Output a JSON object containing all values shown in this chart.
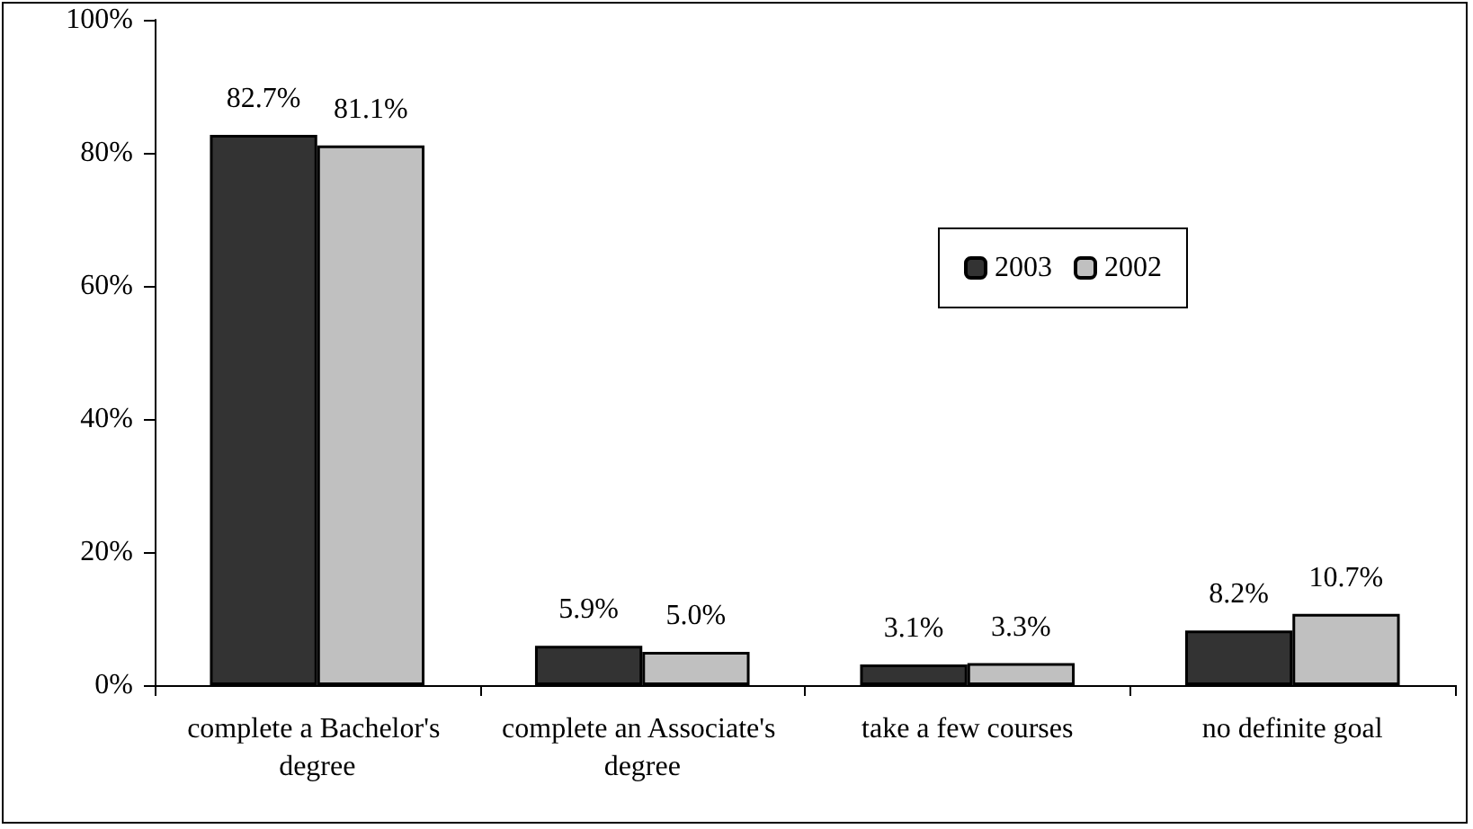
{
  "chart_data": {
    "type": "bar",
    "categories": [
      "complete a Bachelor's degree",
      "complete an Associate's degree",
      "take a few courses",
      "no definite goal"
    ],
    "series": [
      {
        "name": "2003",
        "color": "#333333",
        "values": [
          82.7,
          5.9,
          3.1,
          8.2
        ],
        "value_labels": [
          "82.7%",
          "5.9%",
          "3.1%",
          "8.2%"
        ]
      },
      {
        "name": "2002",
        "color": "#c0c0c0",
        "values": [
          81.1,
          5.0,
          3.3,
          10.7
        ],
        "value_labels": [
          "81.1%",
          "5.0%",
          "3.3%",
          "10.7%"
        ]
      }
    ],
    "ylim": [
      0,
      100
    ],
    "yticks": [
      {
        "value": 0,
        "label": "0%"
      },
      {
        "value": 20,
        "label": "20%"
      },
      {
        "value": 40,
        "label": "40%"
      },
      {
        "value": 60,
        "label": "60%"
      },
      {
        "value": 80,
        "label": "80%"
      },
      {
        "value": 100,
        "label": "100%"
      }
    ],
    "grid": false,
    "legend": "top right"
  }
}
